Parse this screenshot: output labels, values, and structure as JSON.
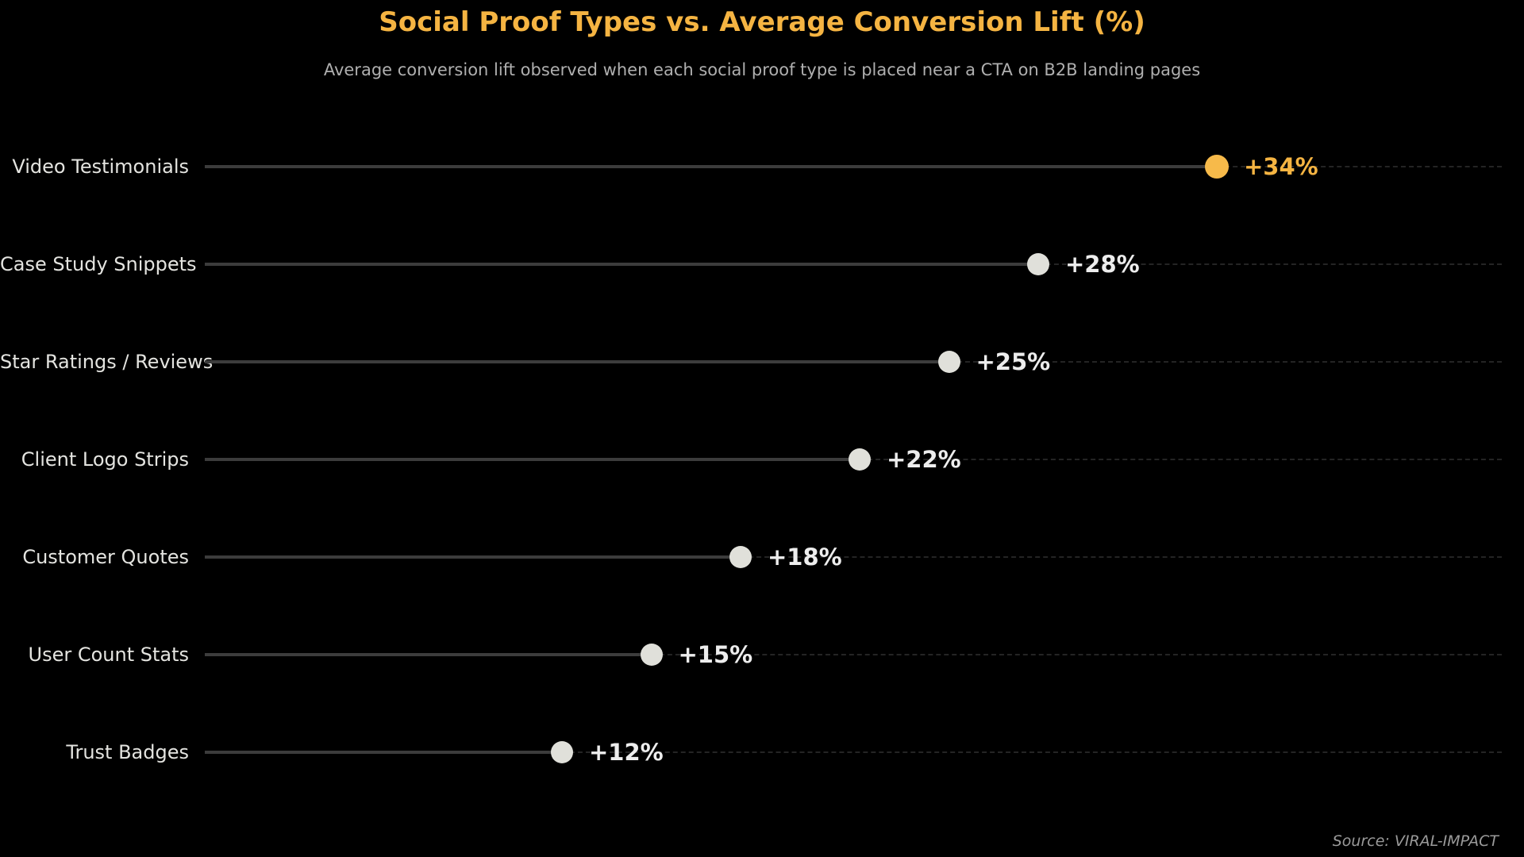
{
  "header": {
    "title": "Social Proof Types vs. Average Conversion Lift (%)",
    "subtitle": "Average conversion lift observed when each social proof type is placed near a CTA on B2B landing pages"
  },
  "footer": {
    "source": "Source: VIRAL-IMPACT"
  },
  "chart_data": {
    "type": "bar",
    "variant": "lollipop-dot",
    "orientation": "horizontal",
    "title": "Social Proof Types vs. Average Conversion Lift (%)",
    "subtitle": "Average conversion lift observed when each social proof type is placed near a CTA on B2B landing pages",
    "categories": [
      "Video Testimonials",
      "Case Study Snippets",
      "Star Ratings / Reviews",
      "Client Logo Strips",
      "Customer Quotes",
      "User Count Stats",
      "Trust Badges"
    ],
    "values": [
      34,
      28,
      25,
      22,
      18,
      15,
      12
    ],
    "value_labels": [
      "+34%",
      "+28%",
      "+25%",
      "+22%",
      "+18%",
      "+15%",
      "+12%"
    ],
    "highlight_index": 0,
    "xlabel": "",
    "ylabel": "",
    "xlim": [
      0,
      44
    ],
    "grid": "faint dashed horizontal row lines",
    "legend": "none",
    "colors": {
      "background": "#000000",
      "accent": "#F5B442",
      "highlight_dot": "#F7BA4A",
      "dot": "#E0E0DA",
      "stem": "#3C3C3C",
      "gridline": "#242424",
      "category_label": "#E4E4E0",
      "value_label": "#EDEDED",
      "subtitle": "#AFAFAF",
      "source": "#9A9A9A"
    }
  }
}
